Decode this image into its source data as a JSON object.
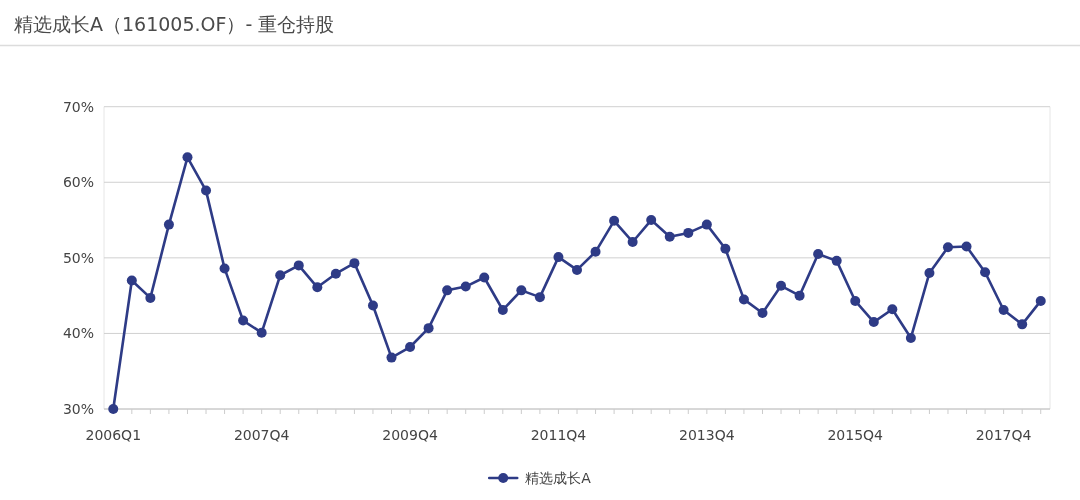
{
  "chart_data": {
    "type": "line",
    "title": "精选成长A（161005.OF）- 重仓持股",
    "categories": [
      "2006Q1",
      null,
      null,
      null,
      null,
      null,
      null,
      null,
      "2007Q4",
      null,
      null,
      null,
      null,
      null,
      null,
      null,
      "2009Q4",
      null,
      null,
      null,
      null,
      null,
      null,
      null,
      "2011Q4",
      null,
      null,
      null,
      null,
      null,
      null,
      null,
      "2013Q4",
      null,
      null,
      null,
      null,
      null,
      null,
      null,
      "2015Q4",
      null,
      null,
      null,
      null,
      null,
      null,
      null,
      "2017Q4",
      null,
      null
    ],
    "series": [
      {
        "name": "精选成长A",
        "color": "#2e3b86",
        "values": [
          30.0,
          47.0,
          44.7,
          54.4,
          63.3,
          58.9,
          48.6,
          41.7,
          40.1,
          47.7,
          49.0,
          46.1,
          47.9,
          49.3,
          43.7,
          36.8,
          38.2,
          40.7,
          45.7,
          46.2,
          47.4,
          43.1,
          45.7,
          44.8,
          50.1,
          48.4,
          50.8,
          54.9,
          52.1,
          55.0,
          52.8,
          53.3,
          54.4,
          51.2,
          44.5,
          42.7,
          46.3,
          45.0,
          50.5,
          49.6,
          44.3,
          41.5,
          43.2,
          39.4,
          48.0,
          51.4,
          51.5,
          48.1,
          43.1,
          41.2,
          44.3
        ]
      }
    ],
    "ylim": [
      30,
      70
    ],
    "yticks": [
      {
        "value": 30,
        "label": "30%"
      },
      {
        "value": 40,
        "label": "40%"
      },
      {
        "value": 50,
        "label": "50%"
      },
      {
        "value": 60,
        "label": "60%"
      },
      {
        "value": 70,
        "label": "70%"
      }
    ],
    "grid": "y",
    "legend": "bottom",
    "marker": "circle",
    "line_style": "solid"
  }
}
